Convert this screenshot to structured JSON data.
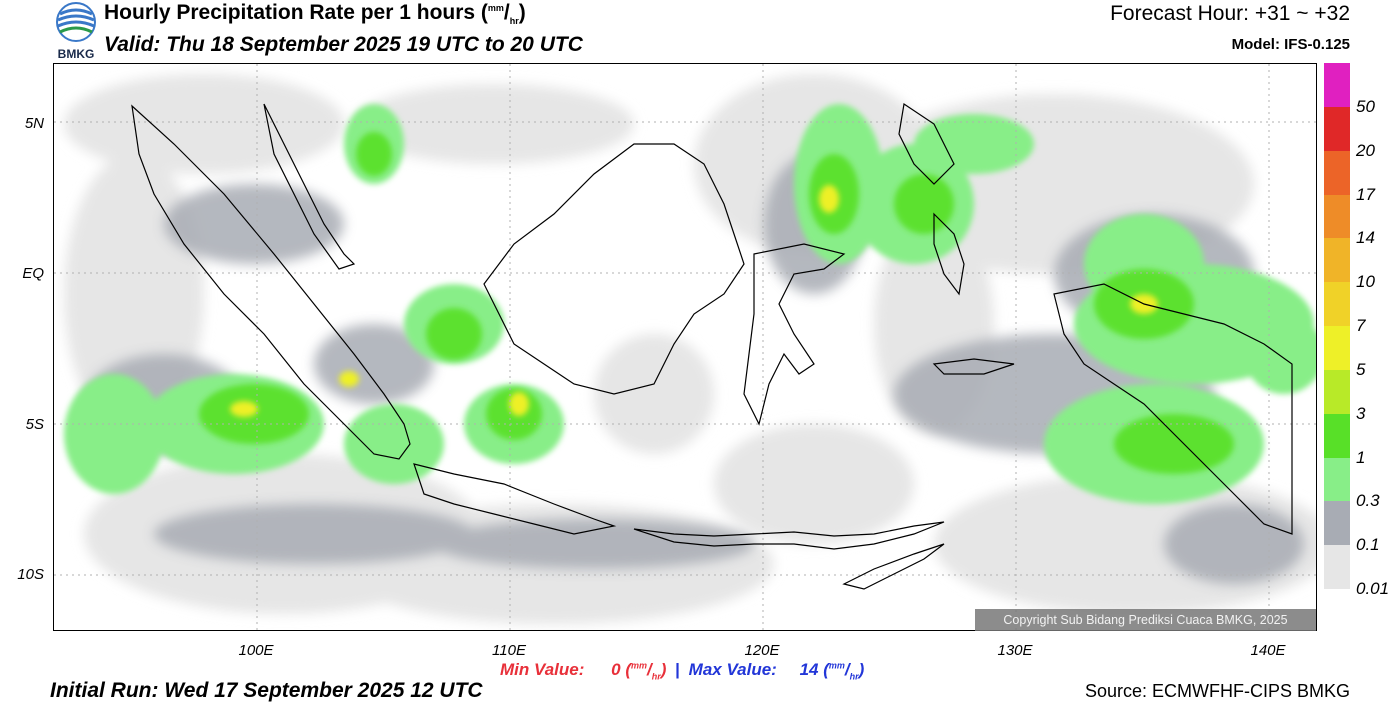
{
  "header": {
    "logo_text": "BMKG",
    "title_main": "Hourly Precipitation Rate per 1 hours (",
    "title_unit_num": "mm",
    "title_unit_den": "hr",
    "title_close": ")",
    "valid": "Valid: Thu 18 September 2025 19 UTC to 20 UTC",
    "forecast_hour": "Forecast Hour: +31 ~ +32",
    "model": "Model: IFS-0.125"
  },
  "map": {
    "y_labels": [
      "5N",
      "EQ",
      "5S",
      "10S"
    ],
    "x_labels": [
      "100E",
      "110E",
      "120E",
      "130E",
      "140E"
    ],
    "copyright": "Copyright Sub Bidang Prediksi Cuaca BMKG, 2025"
  },
  "legend": {
    "labels": [
      "50",
      "20",
      "17",
      "14",
      "10",
      "7",
      "5",
      "3",
      "1",
      "0.3",
      "0.1",
      "0.01"
    ],
    "colors": [
      "#e020c0",
      "#e02828",
      "#ec6428",
      "#ee8c28",
      "#f0b428",
      "#f0d228",
      "#eef028",
      "#b8ea28",
      "#58e028",
      "#88ee88",
      "#a8acb4",
      "#e6e6e6"
    ]
  },
  "footer": {
    "min_label": "Min Value:",
    "min_value": "0",
    "max_label": "Max Value:",
    "max_value": "14",
    "unit_num": "mm",
    "unit_den": "hr",
    "separator": "|",
    "initial_run": "Initial Run: Wed 17 September 2025 12 UTC",
    "source": "Source: ECMWFHF-CIPS BMKG"
  }
}
